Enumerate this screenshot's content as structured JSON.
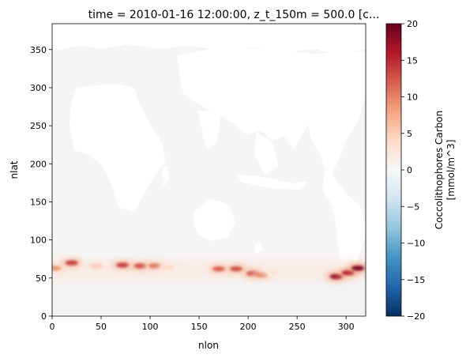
{
  "chart_data": {
    "type": "heatmap",
    "title": "time = 2010-01-16 12:00:00, z_t_150m = 500.0 [c...",
    "xlabel": "nlon",
    "ylabel": "nlat",
    "xlim": [
      0,
      320
    ],
    "ylim": [
      0,
      384
    ],
    "xticks": [
      0,
      50,
      100,
      150,
      200,
      250,
      300
    ],
    "yticks": [
      0,
      50,
      100,
      150,
      200,
      250,
      300,
      350
    ],
    "colorbar": {
      "label_line1": "Coccolithophores Carbon",
      "label_line2": "[mmol/m^3]",
      "range": [
        -20,
        20
      ],
      "ticks": [
        20,
        15,
        10,
        5,
        0,
        -5,
        -10,
        -15,
        -20
      ],
      "tick_labels": [
        "20",
        "15",
        "10",
        "5",
        "0",
        "−5",
        "−10",
        "−15",
        "−20"
      ],
      "colormap": "RdBu_r"
    },
    "background_color": "#f5f5f5",
    "land_color": "#ffffff",
    "band": {
      "description_nlat_range": [
        45,
        75
      ],
      "blobs": [
        {
          "nlon": 3,
          "nlat": 63,
          "value": 9
        },
        {
          "nlon": 20,
          "nlat": 70,
          "value": 14
        },
        {
          "nlon": 45,
          "nlat": 66,
          "value": 5
        },
        {
          "nlon": 72,
          "nlat": 67,
          "value": 14
        },
        {
          "nlon": 90,
          "nlat": 66,
          "value": 13
        },
        {
          "nlon": 105,
          "nlat": 66,
          "value": 11
        },
        {
          "nlon": 118,
          "nlat": 64,
          "value": 4
        },
        {
          "nlon": 170,
          "nlat": 62,
          "value": 12
        },
        {
          "nlon": 188,
          "nlat": 62,
          "value": 13
        },
        {
          "nlon": 205,
          "nlat": 56,
          "value": 14
        },
        {
          "nlon": 214,
          "nlat": 54,
          "value": 10
        },
        {
          "nlon": 225,
          "nlat": 58,
          "value": 3
        },
        {
          "nlon": 290,
          "nlat": 52,
          "value": 18
        },
        {
          "nlon": 302,
          "nlat": 57,
          "value": 16
        },
        {
          "nlon": 312,
          "nlat": 63,
          "value": 19
        }
      ]
    }
  }
}
